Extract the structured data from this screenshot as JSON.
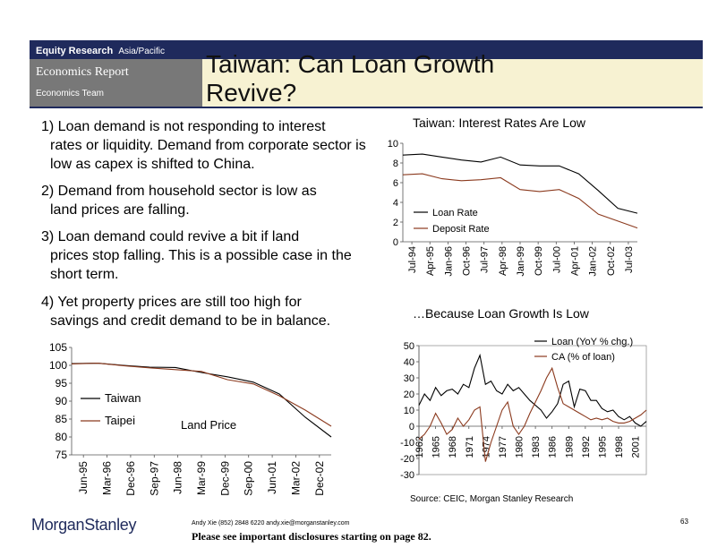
{
  "header": {
    "division": "Equity Research",
    "region": "Asia/Pacific",
    "report_type": "Economics Report",
    "team": "Economics Team",
    "title": "Taiwan: Can Loan Growth Revive?"
  },
  "points": [
    {
      "line1": "1) Loan demand is not responding to interest",
      "rest": "rates or liquidity.  Demand from corporate sector is low as capex is shifted to China."
    },
    {
      "line1": "2) Demand from household sector is low as",
      "rest": "land prices are falling."
    },
    {
      "line1": "3) Loan demand could revive a bit if land",
      "rest": "prices stop falling.  This is a possible case in the short term."
    },
    {
      "line1": "4) Yet property prices are still too high for",
      "rest": "savings and credit demand to be in balance."
    }
  ],
  "captions": {
    "rates": "Taiwan: Interest Rates Are Low",
    "loan_growth": "…Because Loan Growth Is Low"
  },
  "source": "Source: CEIC, Morgan Stanley Research",
  "footer": {
    "logo_morgan": "Morgan",
    "logo_stanley": "Stanley",
    "contact": "Andy Xie (852) 2848 6220  andy.xie@morganstanley.com",
    "disclosure": "Please see important disclosures starting on page 82.",
    "page": "63"
  },
  "colors": {
    "navy": "#1f2a5c",
    "gray": "#787878",
    "cream": "#f7f2d2",
    "black_line": "#000000",
    "brown_line": "#8b3a1e"
  },
  "chart_data": [
    {
      "type": "line",
      "id": "land_price",
      "title": "Land Price",
      "ylim": [
        75,
        105
      ],
      "yticks": [
        75,
        80,
        85,
        90,
        95,
        100,
        105
      ],
      "categories": [
        "Jun-95",
        "Mar-96",
        "Dec-96",
        "Sep-97",
        "Jun-98",
        "Mar-99",
        "Dec-99",
        "Sep-00",
        "Jun-01",
        "Mar-02",
        "Dec-02"
      ],
      "series": [
        {
          "name": "Taiwan",
          "values": [
            100.5,
            100.6,
            100.0,
            99.5,
            99.4,
            98.0,
            96.8,
            95.3,
            92.0,
            85.5,
            80.0
          ]
        },
        {
          "name": "Taipei",
          "values": [
            100.4,
            100.6,
            99.9,
            99.3,
            98.8,
            98.3,
            96.0,
            94.8,
            91.5,
            87.5,
            83.0
          ]
        }
      ]
    },
    {
      "type": "line",
      "id": "interest_rates",
      "title": "",
      "ylim": [
        0,
        10
      ],
      "yticks": [
        0,
        2,
        4,
        6,
        8,
        10
      ],
      "categories": [
        "Jul-94",
        "Apr-95",
        "Jan-96",
        "Oct-96",
        "Jul-97",
        "Apr-98",
        "Jan-99",
        "Oct-99",
        "Jul-00",
        "Apr-01",
        "Jan-02",
        "Oct-02",
        "Jul-03"
      ],
      "series": [
        {
          "name": "Loan Rate",
          "values": [
            8.8,
            8.9,
            8.6,
            8.3,
            8.1,
            8.6,
            7.8,
            7.7,
            7.7,
            6.9,
            5.2,
            3.4,
            2.9
          ]
        },
        {
          "name": "Deposit Rate",
          "values": [
            6.8,
            6.9,
            6.4,
            6.2,
            6.3,
            6.5,
            5.3,
            5.1,
            5.3,
            4.4,
            2.8,
            2.1,
            1.4
          ]
        }
      ]
    },
    {
      "type": "line",
      "id": "loan_growth",
      "title": "",
      "ylim": [
        -30,
        50
      ],
      "yticks": [
        -30,
        -20,
        -10,
        0,
        10,
        20,
        30,
        40,
        50
      ],
      "categories": [
        "1962",
        "1965",
        "1968",
        "1971",
        "1974",
        "1977",
        "1980",
        "1983",
        "1986",
        "1989",
        "1992",
        "1995",
        "1998",
        "2001"
      ],
      "x": [
        1962,
        1963,
        1964,
        1965,
        1966,
        1967,
        1968,
        1969,
        1970,
        1971,
        1972,
        1973,
        1974,
        1975,
        1976,
        1977,
        1978,
        1979,
        1980,
        1981,
        1982,
        1983,
        1984,
        1985,
        1986,
        1987,
        1988,
        1989,
        1990,
        1991,
        1992,
        1993,
        1994,
        1995,
        1996,
        1997,
        1998,
        1999,
        2000,
        2001,
        2002,
        2003
      ],
      "series": [
        {
          "name": "Loan (YoY % chg.)",
          "values": [
            13,
            20,
            16,
            24,
            19,
            22,
            23,
            20,
            26,
            24,
            36,
            44,
            26,
            28,
            22,
            20,
            26,
            22,
            24,
            20,
            16,
            13,
            10,
            5,
            9,
            14,
            26,
            28,
            12,
            23,
            22,
            16,
            16,
            11,
            9,
            10,
            6,
            4,
            6,
            2,
            0,
            3
          ]
        },
        {
          "name": "CA (% of loan)",
          "values": [
            -8,
            -5,
            0,
            8,
            2,
            -5,
            -2,
            5,
            0,
            4,
            10,
            12,
            -22,
            -10,
            0,
            10,
            15,
            0,
            -5,
            0,
            8,
            15,
            22,
            30,
            36,
            24,
            14,
            12,
            10,
            8,
            6,
            4,
            5,
            4,
            5,
            3,
            2,
            2,
            3,
            5,
            7,
            10
          ]
        }
      ]
    }
  ]
}
